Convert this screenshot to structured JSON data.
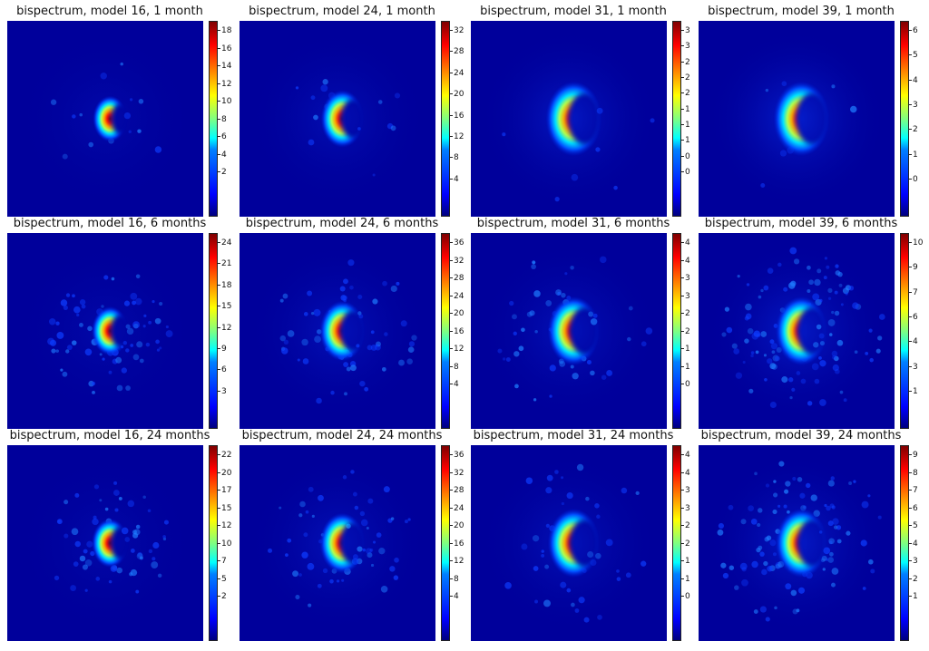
{
  "chart_data": [
    {
      "type": "heatmap",
      "title": "bispectrum, model 16, 1 month",
      "colorbar_ticks": [
        "18",
        "16",
        "14",
        "12",
        "10",
        "8",
        "6",
        "4",
        "2"
      ],
      "colormap": "jet",
      "halo": 0.15,
      "spread": 0.8,
      "noise": 0.1
    },
    {
      "type": "heatmap",
      "title": "bispectrum, model 24, 1 month",
      "colorbar_ticks": [
        "32",
        "28",
        "24",
        "20",
        "16",
        "12",
        "8",
        "4"
      ],
      "colormap": "jet",
      "halo": 0.25,
      "spread": 1.0,
      "noise": 0.1
    },
    {
      "type": "heatmap",
      "title": "bispectrum, model 31, 1 month",
      "colorbar_ticks": [
        "3",
        "3",
        "2",
        "2",
        "2",
        "1",
        "1",
        "1",
        "0",
        "0"
      ],
      "colormap": "jet",
      "halo": 0.4,
      "spread": 1.3,
      "noise": 0.05
    },
    {
      "type": "heatmap",
      "title": "bispectrum, model 39, 1 month",
      "colorbar_ticks": [
        "6",
        "5",
        "4",
        "3",
        "2",
        "1",
        "0"
      ],
      "colormap": "jet",
      "halo": 0.5,
      "spread": 1.3,
      "noise": 0.05
    },
    {
      "type": "heatmap",
      "title": "bispectrum, model 16, 6 months",
      "colorbar_ticks": [
        "24",
        "21",
        "18",
        "15",
        "12",
        "9",
        "6",
        "3"
      ],
      "colormap": "jet",
      "halo": 0.15,
      "spread": 0.85,
      "noise": 0.5
    },
    {
      "type": "heatmap",
      "title": "bispectrum, model 24, 6 months",
      "colorbar_ticks": [
        "36",
        "32",
        "28",
        "24",
        "20",
        "16",
        "12",
        "8",
        "4"
      ],
      "colormap": "jet",
      "halo": 0.3,
      "spread": 1.05,
      "noise": 0.45
    },
    {
      "type": "heatmap",
      "title": "bispectrum, model 31, 6 months",
      "colorbar_ticks": [
        "4",
        "4",
        "3",
        "3",
        "2",
        "2",
        "1",
        "1",
        "0"
      ],
      "colormap": "jet",
      "halo": 0.3,
      "spread": 1.2,
      "noise": 0.35
    },
    {
      "type": "heatmap",
      "title": "bispectrum, model 39, 6 months",
      "colorbar_ticks": [
        "10",
        "9",
        "7",
        "6",
        "4",
        "3",
        "1"
      ],
      "colormap": "jet",
      "halo": 0.45,
      "spread": 1.2,
      "noise": 0.8
    },
    {
      "type": "heatmap",
      "title": "bispectrum, model 16, 24 months",
      "colorbar_ticks": [
        "22",
        "20",
        "17",
        "15",
        "12",
        "10",
        "7",
        "5",
        "2"
      ],
      "colormap": "jet",
      "halo": 0.15,
      "spread": 0.85,
      "noise": 0.4
    },
    {
      "type": "heatmap",
      "title": "bispectrum, model 24, 24 months",
      "colorbar_ticks": [
        "36",
        "32",
        "28",
        "24",
        "20",
        "16",
        "12",
        "8",
        "4"
      ],
      "colormap": "jet",
      "halo": 0.3,
      "spread": 1.05,
      "noise": 0.4
    },
    {
      "type": "heatmap",
      "title": "bispectrum, model 31, 24 months",
      "colorbar_ticks": [
        "4",
        "4",
        "3",
        "3",
        "2",
        "2",
        "1",
        "1",
        "0"
      ],
      "colormap": "jet",
      "halo": 0.3,
      "spread": 1.2,
      "noise": 0.3
    },
    {
      "type": "heatmap",
      "title": "bispectrum, model 39, 24 months",
      "colorbar_ticks": [
        "9",
        "8",
        "7",
        "6",
        "5",
        "4",
        "3",
        "2",
        "1"
      ],
      "colormap": "jet",
      "halo": 0.45,
      "spread": 1.2,
      "noise": 0.7
    }
  ]
}
